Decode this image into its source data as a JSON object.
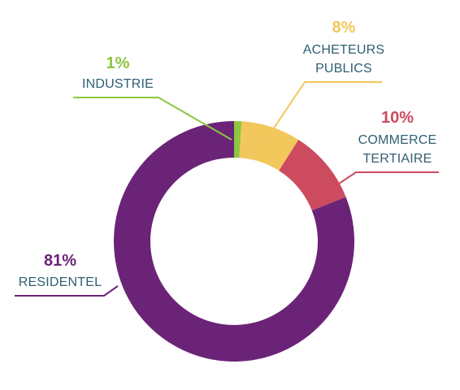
{
  "chart_data": {
    "type": "pie",
    "variant": "donut",
    "title": "",
    "categories": [
      "INDUSTRIE",
      "ACHETEURS PUBLICS",
      "COMMERCE TERTIAIRE",
      "RESIDENTEL"
    ],
    "values": [
      1,
      8,
      10,
      81
    ],
    "value_labels": [
      "1%",
      "8%",
      "10%",
      "81%"
    ],
    "label_lines": [
      [
        "INDUSTRIE"
      ],
      [
        "ACHETEURS",
        "PUBLICS"
      ],
      [
        "COMMERCE",
        "TERTIAIRE"
      ],
      [
        "RESIDENTEL"
      ]
    ],
    "colors": [
      "#8dc63f",
      "#f2c75c",
      "#cc4b5f",
      "#6b2377"
    ],
    "label_text_color": "#2f5f73",
    "legend": "none",
    "start_angle_deg": 0,
    "direction": "clockwise"
  }
}
